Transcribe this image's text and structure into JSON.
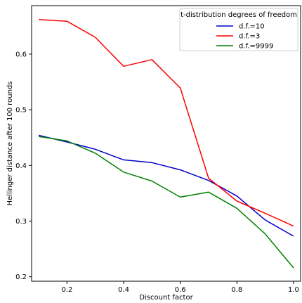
{
  "chart_data": {
    "type": "line",
    "title": "",
    "xlabel": "Discount factor",
    "ylabel": "Hellinger distance after 100 rounds",
    "xlim": [
      0.075,
      1.025
    ],
    "ylim": [
      0.192,
      0.687
    ],
    "xticks": [
      {
        "value": 0.2,
        "label": "0.2"
      },
      {
        "value": 0.4,
        "label": "0.4"
      },
      {
        "value": 0.6,
        "label": "0.6"
      },
      {
        "value": 0.8,
        "label": "0.8"
      },
      {
        "value": 1.0,
        "label": "1.0"
      }
    ],
    "yticks": [
      {
        "value": 0.2,
        "label": "0.2"
      },
      {
        "value": 0.3,
        "label": "0.3"
      },
      {
        "value": 0.4,
        "label": "0.4"
      },
      {
        "value": 0.5,
        "label": "0.5"
      },
      {
        "value": 0.6,
        "label": "0.6"
      }
    ],
    "grid": false,
    "legend": {
      "title": "t-distribution degrees of freedom",
      "placement": "top-right"
    },
    "x": [
      0.1,
      0.2,
      0.3,
      0.4,
      0.5,
      0.6,
      0.7,
      0.8,
      0.9,
      1.0
    ],
    "series": [
      {
        "name": "d.f.=10",
        "color": "#0000cc",
        "values": [
          0.454,
          0.442,
          0.429,
          0.41,
          0.405,
          0.392,
          0.373,
          0.345,
          0.302,
          0.273
        ]
      },
      {
        "name": "d.f.=3",
        "color": "#ff0000",
        "values": [
          0.662,
          0.659,
          0.63,
          0.578,
          0.59,
          0.539,
          0.377,
          0.336,
          0.314,
          0.291
        ]
      },
      {
        "name": "d.f.=9999",
        "color": "#008000",
        "values": [
          0.452,
          0.444,
          0.422,
          0.388,
          0.372,
          0.343,
          0.352,
          0.323,
          0.277,
          0.216
        ]
      }
    ]
  }
}
